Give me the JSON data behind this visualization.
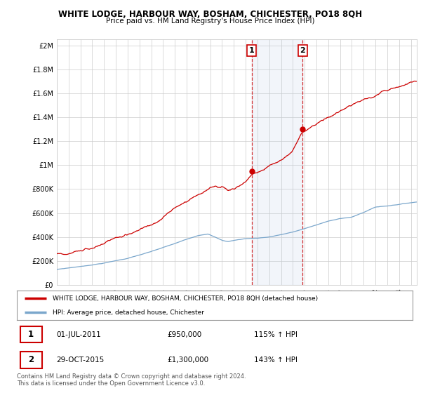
{
  "title": "WHITE LODGE, HARBOUR WAY, BOSHAM, CHICHESTER, PO18 8QH",
  "subtitle": "Price paid vs. HM Land Registry's House Price Index (HPI)",
  "ytick_labels": [
    "£0",
    "£200K",
    "£400K",
    "£600K",
    "£800K",
    "£1M",
    "£1.2M",
    "£1.4M",
    "£1.6M",
    "£1.8M",
    "£2M"
  ],
  "ytick_values": [
    0,
    200000,
    400000,
    600000,
    800000,
    1000000,
    1200000,
    1400000,
    1600000,
    1800000,
    2000000
  ],
  "ylim": [
    0,
    2050000
  ],
  "xlim_start": 1995.0,
  "xlim_end": 2025.5,
  "xtick_years": [
    1995,
    1996,
    1997,
    1998,
    1999,
    2000,
    2001,
    2002,
    2003,
    2004,
    2005,
    2006,
    2007,
    2008,
    2009,
    2010,
    2011,
    2012,
    2013,
    2014,
    2015,
    2016,
    2017,
    2018,
    2019,
    2020,
    2021,
    2022,
    2023,
    2024,
    2025
  ],
  "red_line_color": "#cc0000",
  "blue_line_color": "#7ba7cc",
  "legend_red_label": "WHITE LODGE, HARBOUR WAY, BOSHAM, CHICHESTER, PO18 8QH (detached house)",
  "legend_blue_label": "HPI: Average price, detached house, Chichester",
  "sale1_date": "01-JUL-2011",
  "sale1_price": "£950,000",
  "sale1_hpi": "115% ↑ HPI",
  "sale1_x": 2011.5,
  "sale1_y": 950000,
  "sale2_date": "29-OCT-2015",
  "sale2_price": "£1,300,000",
  "sale2_hpi": "143% ↑ HPI",
  "sale2_x": 2015.83,
  "sale2_y": 1300000,
  "footnote": "Contains HM Land Registry data © Crown copyright and database right 2024.\nThis data is licensed under the Open Government Licence v3.0.",
  "bg_color": "#ffffff",
  "grid_color": "#cccccc",
  "highlight_color": "#ddeeff",
  "dashed_color": "#cc0000"
}
